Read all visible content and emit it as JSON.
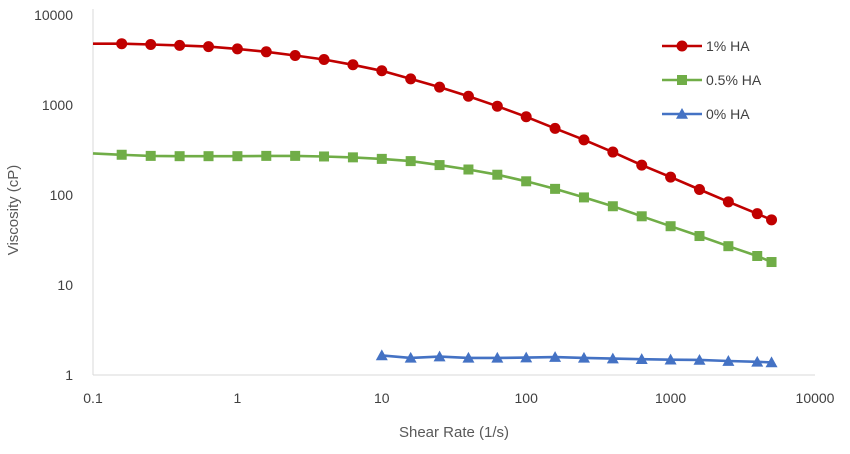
{
  "chart_data": {
    "type": "line",
    "title": "",
    "xlabel": "Shear Rate (1/s)",
    "ylabel": "Viscosity (cP)",
    "xscale": "log",
    "yscale": "log",
    "xlim": [
      0.1,
      10000
    ],
    "ylim": [
      1,
      10000
    ],
    "grid": false,
    "legend_position": "top-right",
    "x_ticks": [
      "0.1",
      "1",
      "10",
      "100",
      "1000",
      "10000"
    ],
    "y_ticks": [
      "1",
      "10",
      "100",
      "1000",
      "10000"
    ],
    "series": [
      {
        "name": "1% HA",
        "color": "#c00000",
        "marker": "circle",
        "x": [
          0.1,
          0.158,
          0.251,
          0.398,
          0.631,
          1,
          1.585,
          2.512,
          3.981,
          6.31,
          10,
          15.85,
          25.12,
          39.81,
          63.1,
          100,
          158.5,
          251.2,
          398.1,
          631,
          1000,
          1585,
          2512,
          3981,
          5000
        ],
        "y": [
          4800,
          4800,
          4700,
          4600,
          4450,
          4200,
          3900,
          3550,
          3200,
          2800,
          2400,
          1950,
          1580,
          1250,
          970,
          740,
          550,
          410,
          300,
          215,
          158,
          115,
          84,
          62,
          53
        ]
      },
      {
        "name": "0.5% HA",
        "color": "#70ad47",
        "marker": "square",
        "x": [
          0.1,
          0.158,
          0.251,
          0.398,
          0.631,
          1,
          1.585,
          2.512,
          3.981,
          6.31,
          10,
          15.85,
          25.12,
          39.81,
          63.1,
          100,
          158.5,
          251.2,
          398.1,
          631,
          1000,
          1585,
          2512,
          3981,
          5000
        ],
        "y": [
          290,
          280,
          272,
          270,
          270,
          270,
          272,
          272,
          268,
          262,
          252,
          238,
          215,
          192,
          168,
          142,
          117,
          94,
          75,
          58,
          45,
          35,
          27,
          21,
          18
        ]
      },
      {
        "name": "0% HA",
        "color": "#4472c4",
        "marker": "triangle",
        "x": [
          10,
          15.85,
          25.12,
          39.81,
          63.1,
          100,
          158.5,
          251.2,
          398.1,
          631,
          1000,
          1585,
          2512,
          3981,
          5000
        ],
        "y": [
          1.65,
          1.55,
          1.6,
          1.55,
          1.55,
          1.56,
          1.58,
          1.55,
          1.52,
          1.5,
          1.48,
          1.47,
          1.43,
          1.4,
          1.38
        ]
      }
    ]
  }
}
